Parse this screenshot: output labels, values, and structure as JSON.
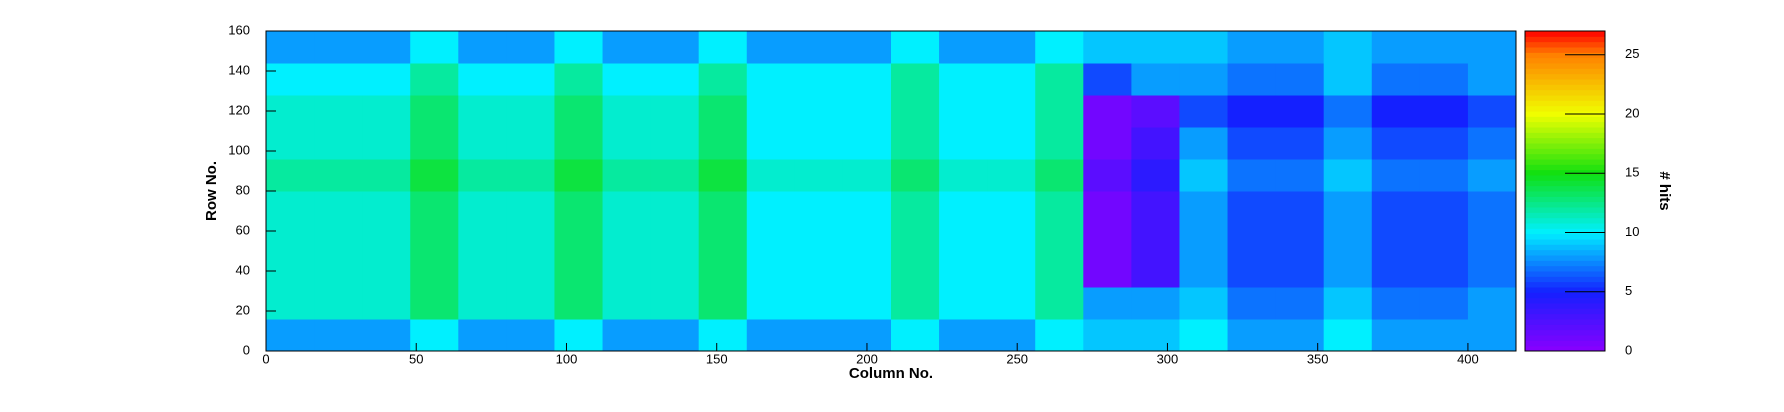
{
  "chart_data": {
    "type": "heatmap",
    "xlabel": "Column No.",
    "ylabel": "Row No.",
    "zlabel": "# hits",
    "xbins": [
      0,
      16,
      32,
      48,
      64,
      80,
      96,
      112,
      128,
      144,
      160,
      176,
      192,
      208,
      224,
      240,
      256,
      272,
      288,
      304,
      320,
      336,
      352,
      368,
      384,
      400,
      416
    ],
    "ybins": [
      0,
      16,
      32,
      48,
      64,
      80,
      96,
      112,
      128,
      144,
      160
    ],
    "z": [
      [
        8,
        8,
        8,
        10,
        8,
        8,
        10,
        8,
        8,
        10,
        8,
        8,
        8,
        10,
        8,
        8,
        10,
        9,
        9,
        10,
        8,
        8,
        10,
        8,
        8,
        8
      ],
      [
        11,
        11,
        11,
        13,
        11,
        11,
        13,
        11,
        11,
        13,
        10,
        10,
        10,
        12,
        10,
        10,
        12,
        8,
        8,
        9,
        7,
        7,
        9,
        7,
        7,
        8
      ],
      [
        11,
        11,
        11,
        13,
        11,
        11,
        13,
        11,
        11,
        13,
        10,
        10,
        10,
        12,
        10,
        10,
        12,
        1,
        3,
        8,
        6,
        6,
        8,
        6,
        6,
        7
      ],
      [
        11,
        11,
        11,
        13,
        11,
        11,
        13,
        11,
        11,
        13,
        10,
        10,
        10,
        12,
        10,
        10,
        12,
        1,
        3,
        8,
        6,
        6,
        8,
        6,
        6,
        7
      ],
      [
        11,
        11,
        11,
        13,
        11,
        11,
        13,
        11,
        11,
        13,
        10,
        10,
        10,
        12,
        10,
        10,
        12,
        1,
        3,
        8,
        6,
        6,
        8,
        6,
        6,
        7
      ],
      [
        12,
        12,
        12,
        14,
        12,
        12,
        14,
        12,
        12,
        14,
        11,
        11,
        11,
        13,
        11,
        11,
        13,
        2,
        4,
        9,
        7,
        7,
        9,
        7,
        7,
        8
      ],
      [
        11,
        11,
        11,
        13,
        11,
        11,
        13,
        11,
        11,
        13,
        10,
        10,
        10,
        12,
        10,
        10,
        12,
        1,
        3,
        8,
        6,
        6,
        8,
        6,
        6,
        7
      ],
      [
        11,
        11,
        11,
        13,
        11,
        11,
        13,
        11,
        11,
        13,
        10,
        10,
        10,
        12,
        10,
        10,
        12,
        1,
        2,
        6,
        5,
        5,
        7,
        5,
        5,
        6
      ],
      [
        10,
        10,
        10,
        12,
        10,
        10,
        12,
        10,
        10,
        12,
        10,
        10,
        10,
        12,
        10,
        10,
        12,
        6,
        8,
        8,
        7,
        7,
        9,
        7,
        7,
        8
      ],
      [
        8,
        8,
        8,
        10,
        8,
        8,
        10,
        8,
        8,
        10,
        8,
        8,
        8,
        10,
        8,
        8,
        10,
        9,
        9,
        9,
        8,
        8,
        9,
        8,
        8,
        8
      ]
    ],
    "xlim": [
      0,
      416
    ],
    "ylim": [
      0,
      160
    ],
    "zlim": [
      0,
      27
    ],
    "xticks": [
      0,
      50,
      100,
      150,
      200,
      250,
      300,
      350,
      400
    ],
    "yticks": [
      0,
      20,
      40,
      60,
      80,
      100,
      120,
      140,
      160
    ],
    "zticks": [
      0,
      5,
      10,
      15,
      20,
      25
    ],
    "colorscale": [
      [
        0,
        "#8a00ff"
      ],
      [
        5,
        "#1420ff"
      ],
      [
        10,
        "#00f0ff"
      ],
      [
        15,
        "#10e010"
      ],
      [
        20,
        "#f0ff00"
      ],
      [
        25,
        "#ff8000"
      ],
      [
        27,
        "#ff0000"
      ]
    ]
  }
}
